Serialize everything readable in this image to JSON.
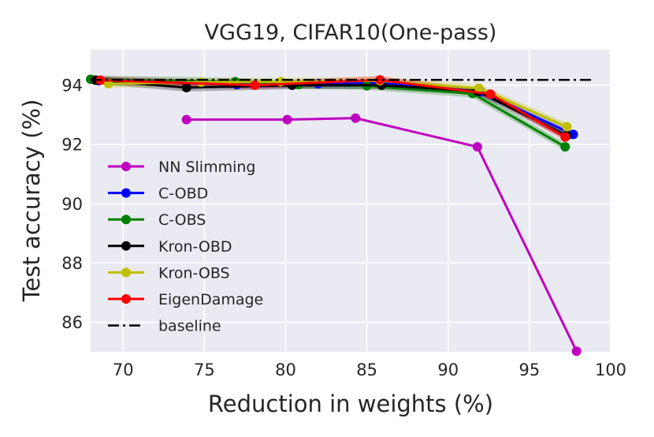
{
  "chart_data": {
    "type": "line",
    "title": "VGG19, CIFAR10(One-pass)",
    "xlabel": "Reduction in weights (%)",
    "ylabel": "Test accuracy (%)",
    "xlim": [
      68,
      100
    ],
    "ylim": [
      85,
      95.2
    ],
    "xticks": [
      70,
      75,
      80,
      85,
      90,
      95,
      100
    ],
    "yticks": [
      86,
      88,
      90,
      92,
      94
    ],
    "grid": true,
    "legend_position": "center-left",
    "baseline": {
      "name": "baseline",
      "value": 94.18,
      "x_range": [
        68,
        99
      ],
      "style": "dash-dot",
      "color": "#000000"
    },
    "series": [
      {
        "name": "NN Slimming",
        "color": "#bf00bf",
        "band": false,
        "x": [
          73.9,
          80.1,
          84.3,
          91.8,
          97.9
        ],
        "y": [
          92.84,
          92.84,
          92.89,
          91.92,
          85.02
        ]
      },
      {
        "name": "C-OBD",
        "color": "#0000ff",
        "band": true,
        "x": [
          68.5,
          77.0,
          82.0,
          86.0,
          92.0,
          97.7
        ],
        "y": [
          94.15,
          94.02,
          94.05,
          94.08,
          93.78,
          92.34
        ]
      },
      {
        "name": "C-OBS",
        "color": "#008000",
        "band": true,
        "x": [
          68.0,
          76.9,
          80.8,
          85.0,
          91.5,
          97.2
        ],
        "y": [
          94.2,
          94.12,
          94.02,
          93.98,
          93.72,
          91.92
        ]
      },
      {
        "name": "Kron-OBD",
        "color": "#000000",
        "band": true,
        "x": [
          68.3,
          73.9,
          80.4,
          85.9,
          91.8,
          97.3
        ],
        "y": [
          94.17,
          93.92,
          94.0,
          94.0,
          93.8,
          92.3
        ]
      },
      {
        "name": "Kron-OBS",
        "color": "#bfbf00",
        "band": true,
        "x": [
          69.1,
          74.8,
          79.7,
          85.8,
          91.9,
          97.3
        ],
        "y": [
          94.05,
          94.1,
          94.12,
          94.15,
          93.9,
          92.6
        ]
      },
      {
        "name": "EigenDamage",
        "color": "#ff0000",
        "band": true,
        "x": [
          68.6,
          78.1,
          85.8,
          92.6,
          97.2
        ],
        "y": [
          94.17,
          94.0,
          94.18,
          93.7,
          92.25
        ]
      }
    ],
    "legend_order": [
      "NN Slimming",
      "C-OBD",
      "C-OBS",
      "Kron-OBD",
      "Kron-OBS",
      "EigenDamage",
      "baseline"
    ]
  }
}
